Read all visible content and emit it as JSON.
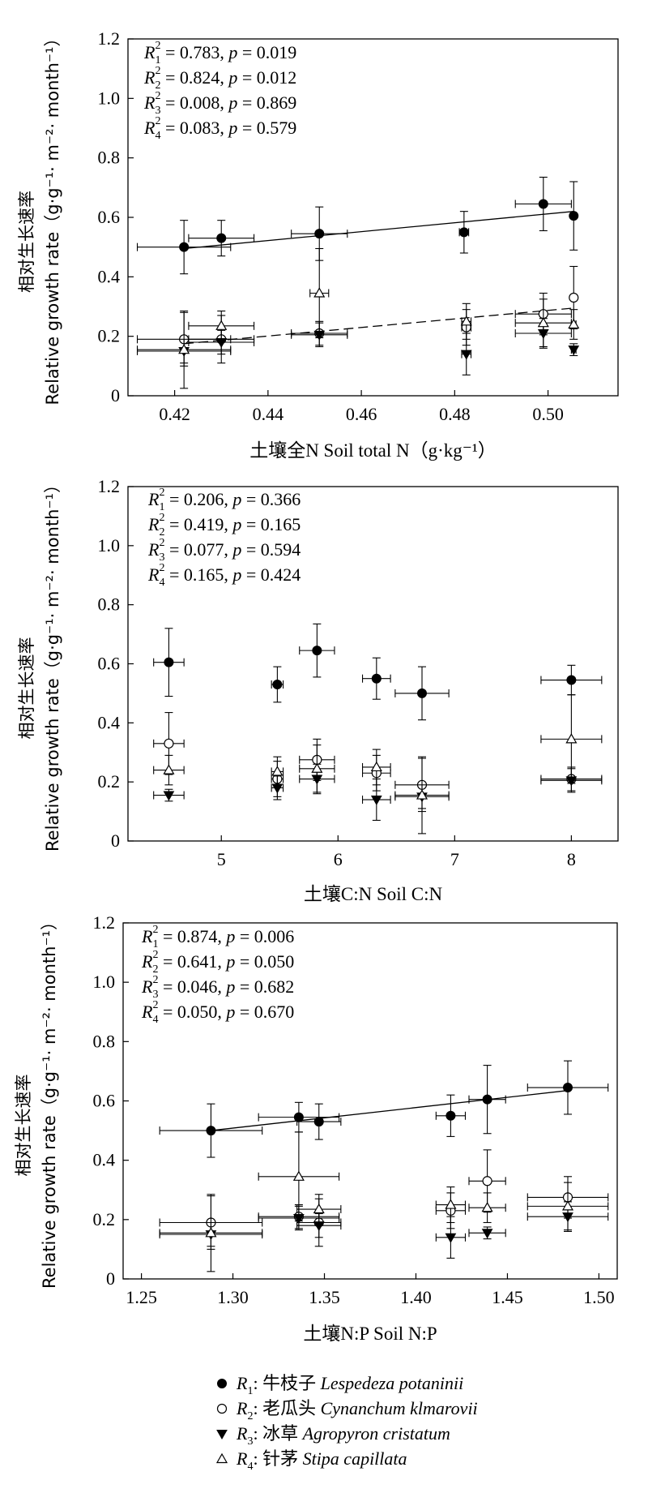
{
  "chart_data": [
    {
      "type": "scatter",
      "xlabel": "土壤全N  Soil total N（g·kg⁻¹）",
      "ylabel_cn": "相对生长速率",
      "ylabel_en": "Relative growth rate（g·g⁻¹· m⁻²· month⁻¹）",
      "xlim": [
        0.41,
        0.515
      ],
      "ylim": [
        0,
        1.2
      ],
      "xticks": [
        0.42,
        0.44,
        0.46,
        0.48,
        0.5
      ],
      "xtick_labels": [
        "0.42",
        "0.44",
        "0.46",
        "0.48",
        "0.50"
      ],
      "yticks": [
        0,
        0.2,
        0.4,
        0.6,
        0.8,
        1.0,
        1.2
      ],
      "ytick_labels": [
        "0",
        "0.2",
        "0.4",
        "0.6",
        "0.8",
        "1.0",
        "1.2"
      ],
      "stats": [
        {
          "sub": "1",
          "r2": "0.783",
          "p": "0.019"
        },
        {
          "sub": "2",
          "r2": "0.824",
          "p": "0.012"
        },
        {
          "sub": "3",
          "r2": "0.008",
          "p": "0.869"
        },
        {
          "sub": "4",
          "r2": "0.083",
          "p": "0.579"
        }
      ],
      "series": [
        {
          "marker": "filled-circle",
          "points": [
            {
              "x": 0.422,
              "y": 0.5,
              "xerr": 0.01,
              "yerr": 0.09
            },
            {
              "x": 0.43,
              "y": 0.53,
              "xerr": 0.007,
              "yerr": 0.06
            },
            {
              "x": 0.451,
              "y": 0.545,
              "xerr": 0.006,
              "yerr": 0.09
            },
            {
              "x": 0.482,
              "y": 0.55,
              "xerr": 0.001,
              "yerr": 0.07
            },
            {
              "x": 0.499,
              "y": 0.645,
              "xerr": 0.006,
              "yerr": 0.09
            },
            {
              "x": 0.5055,
              "y": 0.605,
              "xerr": 0.0005,
              "yerr": 0.115
            }
          ]
        },
        {
          "marker": "open-circle",
          "points": [
            {
              "x": 0.422,
              "y": 0.19,
              "xerr": 0.01,
              "yerr": 0.09
            },
            {
              "x": 0.43,
              "y": 0.19,
              "xerr": 0.007,
              "yerr": 0.08
            },
            {
              "x": 0.451,
              "y": 0.21,
              "xerr": 0.006,
              "yerr": 0.04
            },
            {
              "x": 0.4825,
              "y": 0.23,
              "xerr": 0.001,
              "yerr": 0.06
            },
            {
              "x": 0.499,
              "y": 0.275,
              "xerr": 0.006,
              "yerr": 0.07
            },
            {
              "x": 0.5055,
              "y": 0.33,
              "xerr": 0.0005,
              "yerr": 0.105
            }
          ]
        },
        {
          "marker": "filled-triangle-down",
          "points": [
            {
              "x": 0.422,
              "y": 0.15,
              "xerr": 0.01,
              "yerr": 0.04
            },
            {
              "x": 0.43,
              "y": 0.18,
              "xerr": 0.007,
              "yerr": 0.04
            },
            {
              "x": 0.451,
              "y": 0.205,
              "xerr": 0.006,
              "yerr": 0.04
            },
            {
              "x": 0.4825,
              "y": 0.14,
              "xerr": 0.001,
              "yerr": 0.07
            },
            {
              "x": 0.499,
              "y": 0.21,
              "xerr": 0.006,
              "yerr": 0.05
            },
            {
              "x": 0.5055,
              "y": 0.155,
              "xerr": 0.0005,
              "yerr": 0.02
            }
          ]
        },
        {
          "marker": "open-triangle-up",
          "points": [
            {
              "x": 0.422,
              "y": 0.155,
              "xerr": 0.01,
              "yerr": 0.13
            },
            {
              "x": 0.43,
              "y": 0.235,
              "xerr": 0.007,
              "yerr": 0.05
            },
            {
              "x": 0.451,
              "y": 0.345,
              "xerr": 0.002,
              "yerr": 0.15
            },
            {
              "x": 0.4825,
              "y": 0.25,
              "xerr": 0.001,
              "yerr": 0.06
            },
            {
              "x": 0.499,
              "y": 0.245,
              "xerr": 0.006,
              "yerr": 0.08
            },
            {
              "x": 0.5055,
              "y": 0.24,
              "xerr": 0.0005,
              "yerr": 0.05
            }
          ]
        }
      ],
      "fit_lines": [
        {
          "style": "solid",
          "x": [
            0.422,
            0.5055
          ],
          "y": [
            0.495,
            0.62
          ]
        },
        {
          "style": "dashed",
          "x": [
            0.422,
            0.5055
          ],
          "y": [
            0.175,
            0.295
          ]
        }
      ]
    },
    {
      "type": "scatter",
      "xlabel": "土壤C:N  Soil C:N",
      "ylabel_cn": "相对生长速率",
      "ylabel_en": "Relative growth rate（g·g⁻¹· m⁻²· month⁻¹）",
      "xlim": [
        4.2,
        8.4
      ],
      "ylim": [
        0,
        1.2
      ],
      "xticks": [
        5,
        6,
        7,
        8
      ],
      "xtick_labels": [
        "5",
        "6",
        "7",
        "8"
      ],
      "yticks": [
        0,
        0.2,
        0.4,
        0.6,
        0.8,
        1.0,
        1.2
      ],
      "ytick_labels": [
        "0",
        "0.2",
        "0.4",
        "0.6",
        "0.8",
        "1.0",
        "1.2"
      ],
      "stats": [
        {
          "sub": "1",
          "r2": "0.206",
          "p": "0.366"
        },
        {
          "sub": "2",
          "r2": "0.419",
          "p": "0.165"
        },
        {
          "sub": "3",
          "r2": "0.077",
          "p": "0.594"
        },
        {
          "sub": "4",
          "r2": "0.165",
          "p": "0.424"
        }
      ],
      "series": [
        {
          "marker": "filled-circle",
          "points": [
            {
              "x": 4.55,
              "y": 0.605,
              "xerr": 0.13,
              "yerr": 0.115
            },
            {
              "x": 5.48,
              "y": 0.53,
              "xerr": 0.05,
              "yerr": 0.06
            },
            {
              "x": 5.82,
              "y": 0.645,
              "xerr": 0.15,
              "yerr": 0.09
            },
            {
              "x": 6.33,
              "y": 0.55,
              "xerr": 0.12,
              "yerr": 0.07
            },
            {
              "x": 6.72,
              "y": 0.5,
              "xerr": 0.23,
              "yerr": 0.09
            },
            {
              "x": 8.0,
              "y": 0.545,
              "xerr": 0.26,
              "yerr": 0.05
            }
          ]
        },
        {
          "marker": "open-circle",
          "points": [
            {
              "x": 4.55,
              "y": 0.33,
              "xerr": 0.13,
              "yerr": 0.105
            },
            {
              "x": 5.48,
              "y": 0.21,
              "xerr": 0.05,
              "yerr": 0.06
            },
            {
              "x": 5.82,
              "y": 0.275,
              "xerr": 0.15,
              "yerr": 0.07
            },
            {
              "x": 6.33,
              "y": 0.23,
              "xerr": 0.12,
              "yerr": 0.06
            },
            {
              "x": 6.72,
              "y": 0.19,
              "xerr": 0.23,
              "yerr": 0.09
            },
            {
              "x": 8.0,
              "y": 0.21,
              "xerr": 0.26,
              "yerr": 0.04
            }
          ]
        },
        {
          "marker": "filled-triangle-down",
          "points": [
            {
              "x": 4.55,
              "y": 0.155,
              "xerr": 0.13,
              "yerr": 0.02
            },
            {
              "x": 5.48,
              "y": 0.18,
              "xerr": 0.05,
              "yerr": 0.04
            },
            {
              "x": 5.82,
              "y": 0.21,
              "xerr": 0.15,
              "yerr": 0.05
            },
            {
              "x": 6.33,
              "y": 0.14,
              "xerr": 0.12,
              "yerr": 0.07
            },
            {
              "x": 6.72,
              "y": 0.15,
              "xerr": 0.23,
              "yerr": 0.04
            },
            {
              "x": 8.0,
              "y": 0.205,
              "xerr": 0.26,
              "yerr": 0.04
            }
          ]
        },
        {
          "marker": "open-triangle-up",
          "points": [
            {
              "x": 4.55,
              "y": 0.24,
              "xerr": 0.13,
              "yerr": 0.05
            },
            {
              "x": 5.48,
              "y": 0.235,
              "xerr": 0.05,
              "yerr": 0.05
            },
            {
              "x": 5.82,
              "y": 0.245,
              "xerr": 0.15,
              "yerr": 0.08
            },
            {
              "x": 6.33,
              "y": 0.25,
              "xerr": 0.12,
              "yerr": 0.06
            },
            {
              "x": 6.72,
              "y": 0.155,
              "xerr": 0.23,
              "yerr": 0.13
            },
            {
              "x": 8.0,
              "y": 0.345,
              "xerr": 0.26,
              "yerr": 0.15
            }
          ]
        }
      ],
      "fit_lines": []
    },
    {
      "type": "scatter",
      "xlabel": "土壤N:P  Soil N:P",
      "ylabel_cn": "相对生长速率",
      "ylabel_en": "Relative growth rate（g·g⁻¹· m⁻²· month⁻¹）",
      "xlim": [
        1.24,
        1.51
      ],
      "ylim": [
        0,
        1.2
      ],
      "xticks": [
        1.25,
        1.3,
        1.35,
        1.4,
        1.45,
        1.5
      ],
      "xtick_labels": [
        "1.25",
        "1.30",
        "1.35",
        "1.40",
        "1.45",
        "1.50"
      ],
      "yticks": [
        0,
        0.2,
        0.4,
        0.6,
        0.8,
        1.0,
        1.2
      ],
      "ytick_labels": [
        "0",
        "0.2",
        "0.4",
        "0.6",
        "0.8",
        "1.0",
        "1.2"
      ],
      "stats": [
        {
          "sub": "1",
          "r2": "0.874",
          "p": "0.006"
        },
        {
          "sub": "2",
          "r2": "0.641",
          "p": "0.050"
        },
        {
          "sub": "3",
          "r2": "0.046",
          "p": "0.682"
        },
        {
          "sub": "4",
          "r2": "0.050",
          "p": "0.670"
        }
      ],
      "series": [
        {
          "marker": "filled-circle",
          "points": [
            {
              "x": 1.288,
              "y": 0.5,
              "xerr": 0.028,
              "yerr": 0.09
            },
            {
              "x": 1.336,
              "y": 0.545,
              "xerr": 0.022,
              "yerr": 0.05
            },
            {
              "x": 1.347,
              "y": 0.53,
              "xerr": 0.012,
              "yerr": 0.06
            },
            {
              "x": 1.419,
              "y": 0.55,
              "xerr": 0.008,
              "yerr": 0.07
            },
            {
              "x": 1.439,
              "y": 0.605,
              "xerr": 0.01,
              "yerr": 0.115
            },
            {
              "x": 1.483,
              "y": 0.645,
              "xerr": 0.022,
              "yerr": 0.09
            }
          ]
        },
        {
          "marker": "open-circle",
          "points": [
            {
              "x": 1.288,
              "y": 0.19,
              "xerr": 0.028,
              "yerr": 0.09
            },
            {
              "x": 1.336,
              "y": 0.21,
              "xerr": 0.022,
              "yerr": 0.04
            },
            {
              "x": 1.347,
              "y": 0.19,
              "xerr": 0.012,
              "yerr": 0.08
            },
            {
              "x": 1.419,
              "y": 0.23,
              "xerr": 0.008,
              "yerr": 0.06
            },
            {
              "x": 1.439,
              "y": 0.33,
              "xerr": 0.01,
              "yerr": 0.105
            },
            {
              "x": 1.483,
              "y": 0.275,
              "xerr": 0.022,
              "yerr": 0.07
            }
          ]
        },
        {
          "marker": "filled-triangle-down",
          "points": [
            {
              "x": 1.288,
              "y": 0.15,
              "xerr": 0.028,
              "yerr": 0.04
            },
            {
              "x": 1.336,
              "y": 0.205,
              "xerr": 0.022,
              "yerr": 0.04
            },
            {
              "x": 1.347,
              "y": 0.18,
              "xerr": 0.012,
              "yerr": 0.04
            },
            {
              "x": 1.419,
              "y": 0.14,
              "xerr": 0.008,
              "yerr": 0.07
            },
            {
              "x": 1.439,
              "y": 0.155,
              "xerr": 0.01,
              "yerr": 0.02
            },
            {
              "x": 1.483,
              "y": 0.21,
              "xerr": 0.022,
              "yerr": 0.05
            }
          ]
        },
        {
          "marker": "open-triangle-up",
          "points": [
            {
              "x": 1.288,
              "y": 0.155,
              "xerr": 0.028,
              "yerr": 0.13
            },
            {
              "x": 1.336,
              "y": 0.345,
              "xerr": 0.022,
              "yerr": 0.15
            },
            {
              "x": 1.347,
              "y": 0.235,
              "xerr": 0.012,
              "yerr": 0.05
            },
            {
              "x": 1.419,
              "y": 0.25,
              "xerr": 0.008,
              "yerr": 0.06
            },
            {
              "x": 1.439,
              "y": 0.24,
              "xerr": 0.01,
              "yerr": 0.05
            },
            {
              "x": 1.483,
              "y": 0.245,
              "xerr": 0.022,
              "yerr": 0.08
            }
          ]
        }
      ],
      "fit_lines": [
        {
          "style": "solid",
          "x": [
            1.288,
            1.483
          ],
          "y": [
            0.5,
            0.635
          ]
        }
      ]
    }
  ],
  "legend": [
    {
      "marker": "filled-circle",
      "sub": "1",
      "cn": "牛枝子",
      "latin": "Lespedeza potaninii"
    },
    {
      "marker": "open-circle",
      "sub": "2",
      "cn": "老瓜头",
      "latin": "Cynanchum klmarovii"
    },
    {
      "marker": "filled-triangle-down",
      "sub": "3",
      "cn": "冰草",
      "latin": "Agropyron cristatum"
    },
    {
      "marker": "open-triangle-up",
      "sub": "4",
      "cn": "针茅",
      "latin": "Stipa capillata"
    }
  ]
}
